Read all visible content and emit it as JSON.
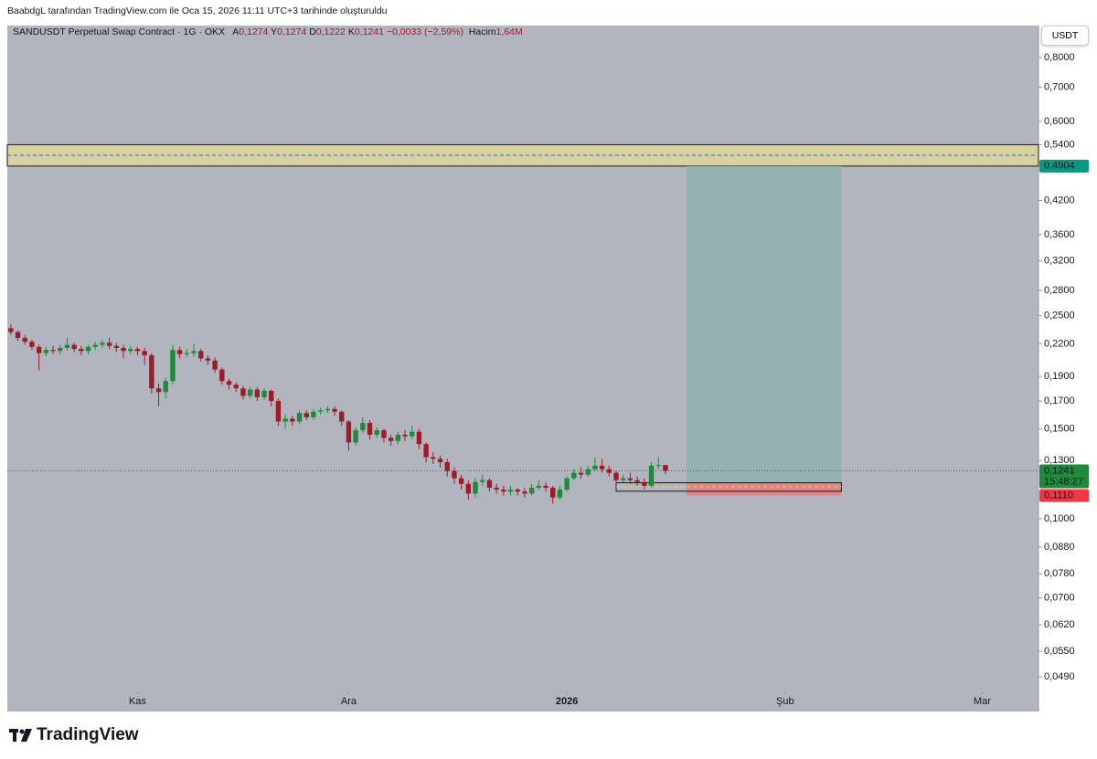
{
  "attribution": "BaabdgL tarafından TradingView.com ile Oca 15, 2026 11:11 UTC+3 tarihinde oluşturuldu",
  "symbol": "SANDUSDT Perpetual Swap Contract · 1G · OKX",
  "ohlc": [
    {
      "label": "A",
      "value": "0,1274"
    },
    {
      "label": "Y",
      "value": "0,1274"
    },
    {
      "label": "D",
      "value": "0,1222"
    },
    {
      "label": "K",
      "value": "0,1241"
    }
  ],
  "change": "−0,0033 (−2,59%)",
  "volume": {
    "label": "Hacim",
    "value": "1,64M"
  },
  "currency_button": "USDT",
  "brand": "TradingView",
  "chart_data": {
    "type": "candlestick",
    "log_scale": true,
    "up_color": "#1e8a3c",
    "down_color": "#9c1c2a",
    "open": [
      0.236,
      0.232,
      0.226,
      0.222,
      0.217,
      0.211,
      0.214,
      0.213,
      0.216,
      0.219,
      0.215,
      0.213,
      0.217,
      0.219,
      0.221,
      0.218,
      0.216,
      0.213,
      0.215,
      0.213,
      0.209,
      0.18,
      0.177,
      0.186,
      0.214,
      0.21,
      0.211,
      0.213,
      0.206,
      0.204,
      0.196,
      0.186,
      0.183,
      0.18,
      0.174,
      0.179,
      0.173,
      0.178,
      0.17,
      0.155,
      0.157,
      0.155,
      0.161,
      0.158,
      0.162,
      0.163,
      0.164,
      0.162,
      0.155,
      0.141,
      0.149,
      0.154,
      0.146,
      0.149,
      0.144,
      0.142,
      0.146,
      0.145,
      0.148,
      0.14,
      0.132,
      0.131,
      0.129,
      0.124,
      0.12,
      0.117,
      0.112,
      0.118,
      0.119,
      0.115,
      0.114,
      0.113,
      0.114,
      0.113,
      0.112,
      0.115,
      0.116,
      0.115,
      0.11,
      0.114,
      0.12,
      0.123,
      0.122,
      0.125,
      0.127,
      0.125,
      0.123,
      0.119,
      0.12,
      0.119,
      0.118,
      0.116,
      0.127,
      0.1274
    ],
    "high": [
      0.24,
      0.234,
      0.229,
      0.224,
      0.219,
      0.217,
      0.218,
      0.219,
      0.226,
      0.221,
      0.218,
      0.219,
      0.222,
      0.224,
      0.226,
      0.221,
      0.219,
      0.218,
      0.217,
      0.216,
      0.211,
      0.184,
      0.189,
      0.219,
      0.217,
      0.215,
      0.22,
      0.215,
      0.209,
      0.207,
      0.198,
      0.188,
      0.185,
      0.182,
      0.181,
      0.181,
      0.18,
      0.179,
      0.172,
      0.16,
      0.159,
      0.163,
      0.163,
      0.164,
      0.165,
      0.166,
      0.166,
      0.163,
      0.156,
      0.151,
      0.158,
      0.156,
      0.151,
      0.15,
      0.146,
      0.148,
      0.149,
      0.152,
      0.15,
      0.141,
      0.135,
      0.133,
      0.131,
      0.126,
      0.122,
      0.119,
      0.12,
      0.122,
      0.12,
      0.117,
      0.116,
      0.116,
      0.115,
      0.115,
      0.117,
      0.119,
      0.118,
      0.116,
      0.116,
      0.121,
      0.125,
      0.126,
      0.127,
      0.132,
      0.131,
      0.127,
      0.124,
      0.122,
      0.123,
      0.121,
      0.12,
      0.129,
      0.132,
      0.1274
    ],
    "low": [
      0.229,
      0.223,
      0.219,
      0.214,
      0.195,
      0.208,
      0.21,
      0.21,
      0.213,
      0.212,
      0.209,
      0.21,
      0.214,
      0.216,
      0.215,
      0.212,
      0.206,
      0.21,
      0.209,
      0.2,
      0.176,
      0.166,
      0.172,
      0.183,
      0.206,
      0.207,
      0.208,
      0.203,
      0.2,
      0.193,
      0.183,
      0.179,
      0.177,
      0.171,
      0.172,
      0.17,
      0.171,
      0.166,
      0.152,
      0.15,
      0.152,
      0.153,
      0.156,
      0.156,
      0.16,
      0.161,
      0.159,
      0.152,
      0.136,
      0.139,
      0.147,
      0.143,
      0.144,
      0.141,
      0.139,
      0.14,
      0.142,
      0.143,
      0.137,
      0.129,
      0.128,
      0.126,
      0.121,
      0.117,
      0.114,
      0.109,
      0.11,
      0.116,
      0.113,
      0.112,
      0.111,
      0.111,
      0.111,
      0.11,
      0.111,
      0.114,
      0.113,
      0.107,
      0.109,
      0.113,
      0.119,
      0.12,
      0.121,
      0.124,
      0.123,
      0.121,
      0.117,
      0.118,
      0.117,
      0.116,
      0.114,
      0.115,
      0.125,
      0.1222
    ],
    "close": [
      0.232,
      0.226,
      0.222,
      0.217,
      0.211,
      0.214,
      0.213,
      0.216,
      0.219,
      0.215,
      0.213,
      0.217,
      0.219,
      0.221,
      0.218,
      0.216,
      0.213,
      0.215,
      0.213,
      0.209,
      0.18,
      0.177,
      0.186,
      0.214,
      0.21,
      0.211,
      0.213,
      0.206,
      0.204,
      0.196,
      0.186,
      0.183,
      0.18,
      0.174,
      0.179,
      0.173,
      0.178,
      0.17,
      0.155,
      0.157,
      0.155,
      0.161,
      0.158,
      0.162,
      0.163,
      0.164,
      0.162,
      0.155,
      0.141,
      0.149,
      0.154,
      0.146,
      0.149,
      0.144,
      0.142,
      0.146,
      0.145,
      0.148,
      0.14,
      0.132,
      0.131,
      0.129,
      0.124,
      0.12,
      0.117,
      0.112,
      0.118,
      0.119,
      0.115,
      0.114,
      0.113,
      0.114,
      0.113,
      0.112,
      0.115,
      0.116,
      0.115,
      0.11,
      0.114,
      0.12,
      0.123,
      0.122,
      0.125,
      0.127,
      0.125,
      0.123,
      0.119,
      0.12,
      0.119,
      0.118,
      0.116,
      0.127,
      0.1274,
      0.1241
    ],
    "xlim": [
      -0.5,
      146
    ],
    "xticks": [
      {
        "value": 18,
        "label": "Kas"
      },
      {
        "value": 48,
        "label": "Ara"
      },
      {
        "value": 79,
        "label": "2026"
      },
      {
        "value": 110,
        "label": "Şub"
      },
      {
        "value": 138,
        "label": "Mar"
      }
    ],
    "ylim": [
      0.0459,
      0.924
    ],
    "yticks": [
      {
        "value": 0.8,
        "label": "0,8000"
      },
      {
        "value": 0.7,
        "label": "0,7000"
      },
      {
        "value": 0.6,
        "label": "0,6000"
      },
      {
        "value": 0.54,
        "label": "0,5400"
      },
      {
        "value": 0.42,
        "label": "0,4200"
      },
      {
        "value": 0.36,
        "label": "0,3600"
      },
      {
        "value": 0.32,
        "label": "0,3200"
      },
      {
        "value": 0.28,
        "label": "0,2800"
      },
      {
        "value": 0.25,
        "label": "0,2500"
      },
      {
        "value": 0.22,
        "label": "0,2200"
      },
      {
        "value": 0.19,
        "label": "0,1900"
      },
      {
        "value": 0.17,
        "label": "0,1700"
      },
      {
        "value": 0.15,
        "label": "0,1500"
      },
      {
        "value": 0.13,
        "label": "0,1300"
      },
      {
        "value": 0.1,
        "label": "0,1000"
      },
      {
        "value": 0.088,
        "label": "0,0880"
      },
      {
        "value": 0.078,
        "label": "0,0780"
      },
      {
        "value": 0.07,
        "label": "0,0700"
      },
      {
        "value": 0.062,
        "label": "0,0620"
      },
      {
        "value": 0.055,
        "label": "0,0550"
      },
      {
        "value": 0.049,
        "label": "0,0490"
      }
    ],
    "zone": {
      "top": 0.54,
      "bottom": 0.4904,
      "mid": 0.515,
      "color": "#d8d29e"
    },
    "position": {
      "start": 96,
      "end": 118,
      "entry": 0.1173,
      "target": 0.4904,
      "stop": 0.111
    },
    "range_box": {
      "start": 86,
      "end": 118,
      "top": 0.1176,
      "bottom": 0.1132,
      "mid": 0.1155
    },
    "last_price": 0.1241,
    "price_labels": [
      {
        "value": 0.4904,
        "label": "0,4904",
        "color": "#089981"
      },
      {
        "value": 0.1241,
        "label": "0,1241",
        "sub": "15:48:27",
        "color": "#1e8a3c"
      },
      {
        "value": 0.111,
        "label": "0,1110",
        "color": "#f23645"
      }
    ]
  }
}
